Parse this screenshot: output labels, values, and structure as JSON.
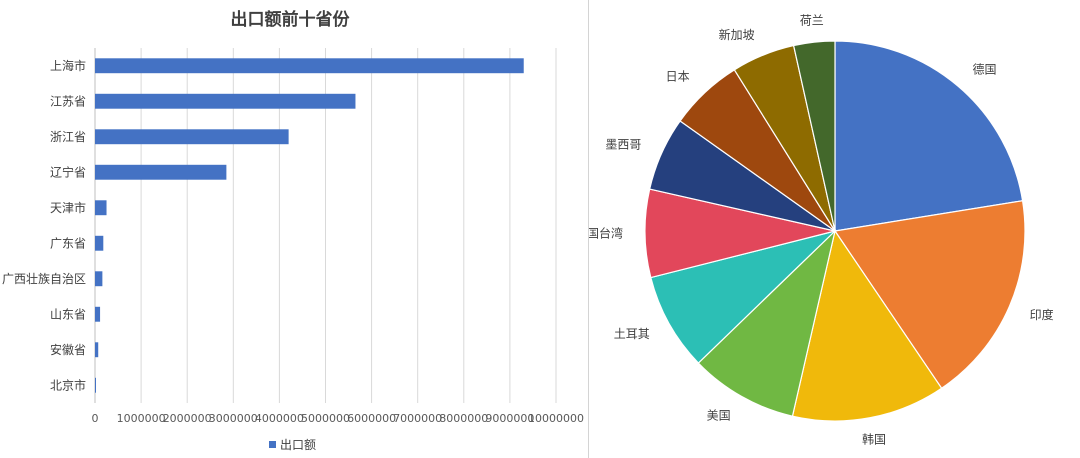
{
  "chart_data": [
    {
      "type": "bar",
      "orientation": "horizontal",
      "title": "出口额前十省份",
      "categories": [
        "上海市",
        "江苏省",
        "浙江省",
        "辽宁省",
        "天津市",
        "广东省",
        "广西壮族自治区",
        "山东省",
        "安徽省",
        "北京市"
      ],
      "series": [
        {
          "name": "出口额",
          "values": [
            9300000,
            5650000,
            4200000,
            2850000,
            250000,
            180000,
            160000,
            110000,
            70000,
            20000
          ]
        }
      ],
      "xlim": [
        0,
        10000000
      ],
      "x_ticks": [
        "0",
        "1000000",
        "2000000",
        "3000000",
        "4000000",
        "5000000",
        "6000000",
        "7000000",
        "8000000",
        "9000000",
        "10000000"
      ],
      "grid": "vertical",
      "legend": "bottom",
      "colors": {
        "bar": "#4472C4",
        "grid": "#d9d9d9",
        "axis": "#bfbfbf"
      }
    },
    {
      "type": "pie",
      "labels": [
        "德国",
        "印度",
        "韩国",
        "美国",
        "土耳其",
        "中国台湾",
        "墨西哥",
        "日本",
        "新加坡",
        "荷兰"
      ],
      "values": [
        22.5,
        18.1,
        13.1,
        9.2,
        8.3,
        7.5,
        6.3,
        6.3,
        5.4,
        3.5
      ],
      "colors": [
        "#4472C4",
        "#ED7D31",
        "#F0B90B",
        "#70B843",
        "#2CBFB5",
        "#E2475B",
        "#25407E",
        "#9E480E",
        "#8E6B00",
        "#43682B"
      ],
      "start_angle": "12 o'clock",
      "direction": "clockwise",
      "legend": "none, category labels outside slices"
    }
  ]
}
